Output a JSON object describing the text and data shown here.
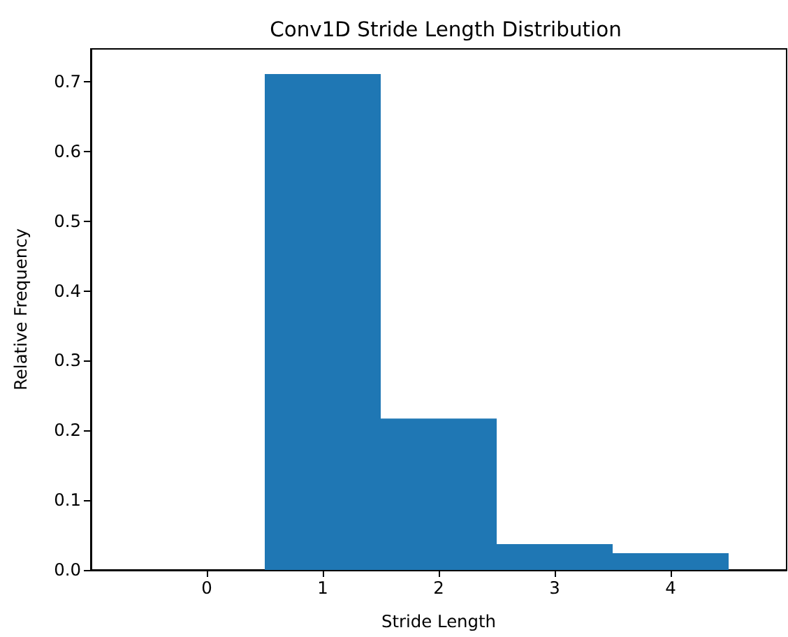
{
  "chart_data": {
    "type": "histogram",
    "title": "Conv1D Stride Length Distribution",
    "xlabel": "Stride Length",
    "ylabel": "Relative Frequency",
    "bins": [
      0.5,
      1.5,
      2.5,
      3.5,
      4.5
    ],
    "values": [
      0.711,
      0.217,
      0.037,
      0.024
    ],
    "color": "#1f77b4",
    "xlim": [
      -1,
      5
    ],
    "xticks": [
      0,
      1,
      2,
      3,
      4
    ],
    "ylim": [
      0,
      0.747
    ],
    "yticks": [
      {
        "value": 0,
        "label": "0.0"
      },
      0.1,
      0.2,
      0.3,
      0.4,
      0.5,
      0.6,
      0.7
    ]
  }
}
